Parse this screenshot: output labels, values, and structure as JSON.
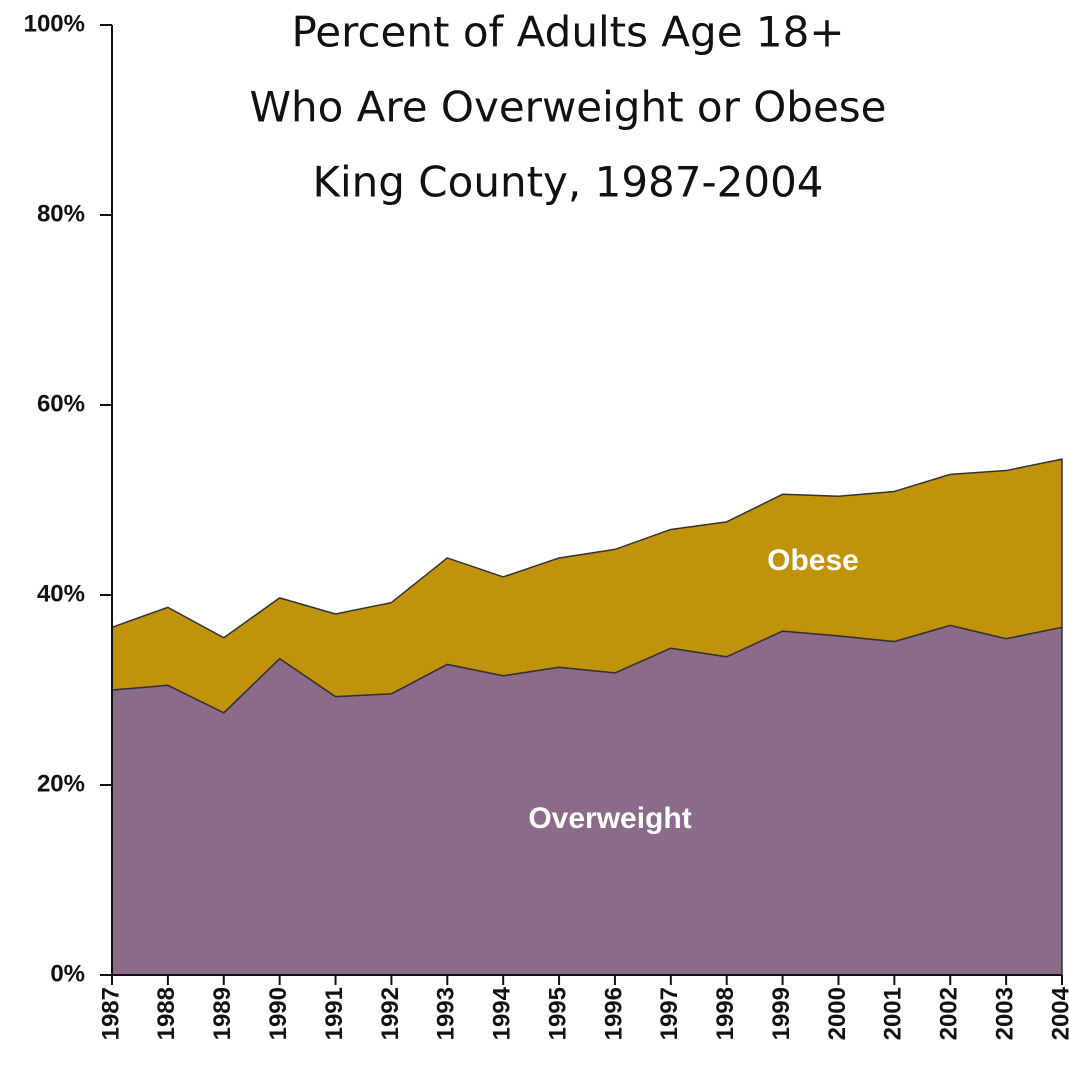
{
  "chart_data": {
    "type": "stacked_area",
    "title": [
      "Percent of Adults Age 18+",
      "Who Are Overweight or Obese",
      "King County, 1987-2004"
    ],
    "categories": [
      "1987",
      "1988",
      "1989",
      "1990",
      "1991",
      "1992",
      "1993",
      "1994",
      "1995",
      "1996",
      "1997",
      "1998",
      "1999",
      "2000",
      "2001",
      "2002",
      "2003",
      "2004"
    ],
    "series": [
      {
        "name": "Overweight",
        "color": "#8c6b8a",
        "values": [
          30.0,
          30.5,
          27.6,
          33.3,
          29.3,
          29.6,
          32.7,
          31.5,
          32.4,
          31.8,
          34.4,
          33.5,
          36.2,
          35.7,
          35.1,
          36.8,
          35.4,
          36.6
        ]
      },
      {
        "name": "Obese",
        "color": "#c0930a",
        "values": [
          6.6,
          8.2,
          7.9,
          6.4,
          8.7,
          9.6,
          11.2,
          10.4,
          11.5,
          13.0,
          12.5,
          14.2,
          14.4,
          14.7,
          15.8,
          15.9,
          17.7,
          17.7
        ]
      }
    ],
    "ylim": [
      0,
      100
    ],
    "yticks": [
      {
        "value": 0,
        "label": "0%"
      },
      {
        "value": 20,
        "label": "20%"
      },
      {
        "value": 40,
        "label": "40%"
      },
      {
        "value": 60,
        "label": "60%"
      },
      {
        "value": 80,
        "label": "80%"
      },
      {
        "value": 100,
        "label": "100%"
      }
    ],
    "grid": false
  }
}
